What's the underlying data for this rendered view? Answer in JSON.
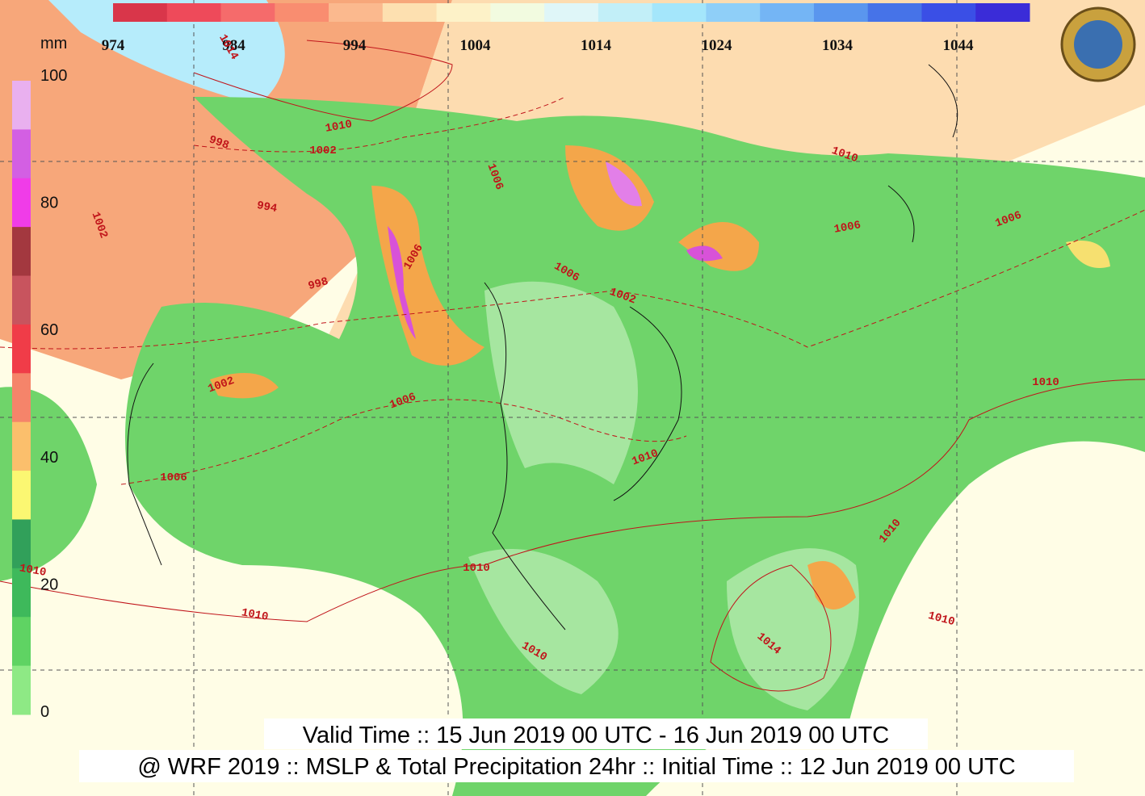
{
  "pressure_legend": {
    "labels": [
      "974",
      "984",
      "994",
      "1004",
      "1014",
      "1024",
      "1034",
      "1044"
    ]
  },
  "precip_legend": {
    "unit": "mm",
    "labels": [
      "100",
      "80",
      "60",
      "40",
      "20",
      "0"
    ]
  },
  "isobar_labels": [
    "1014",
    "1010",
    "1002",
    "998",
    "994",
    "1002",
    "998",
    "1006",
    "1006",
    "1002",
    "1006",
    "1006",
    "1010",
    "1006",
    "1006",
    "1010",
    "1010",
    "1010",
    "1010",
    "1010",
    "1014",
    "1010",
    "1010",
    "1002",
    "1006",
    "1010"
  ],
  "footer": {
    "valid_time": "Valid Time :: 15 Jun 2019 00 UTC - 16 Jun 2019 00 UTC",
    "model_info": "@ WRF 2019 :: MSLP & Total Precipitation 24hr :: Initial Time :: 12 Jun 2019 00 UTC"
  }
}
